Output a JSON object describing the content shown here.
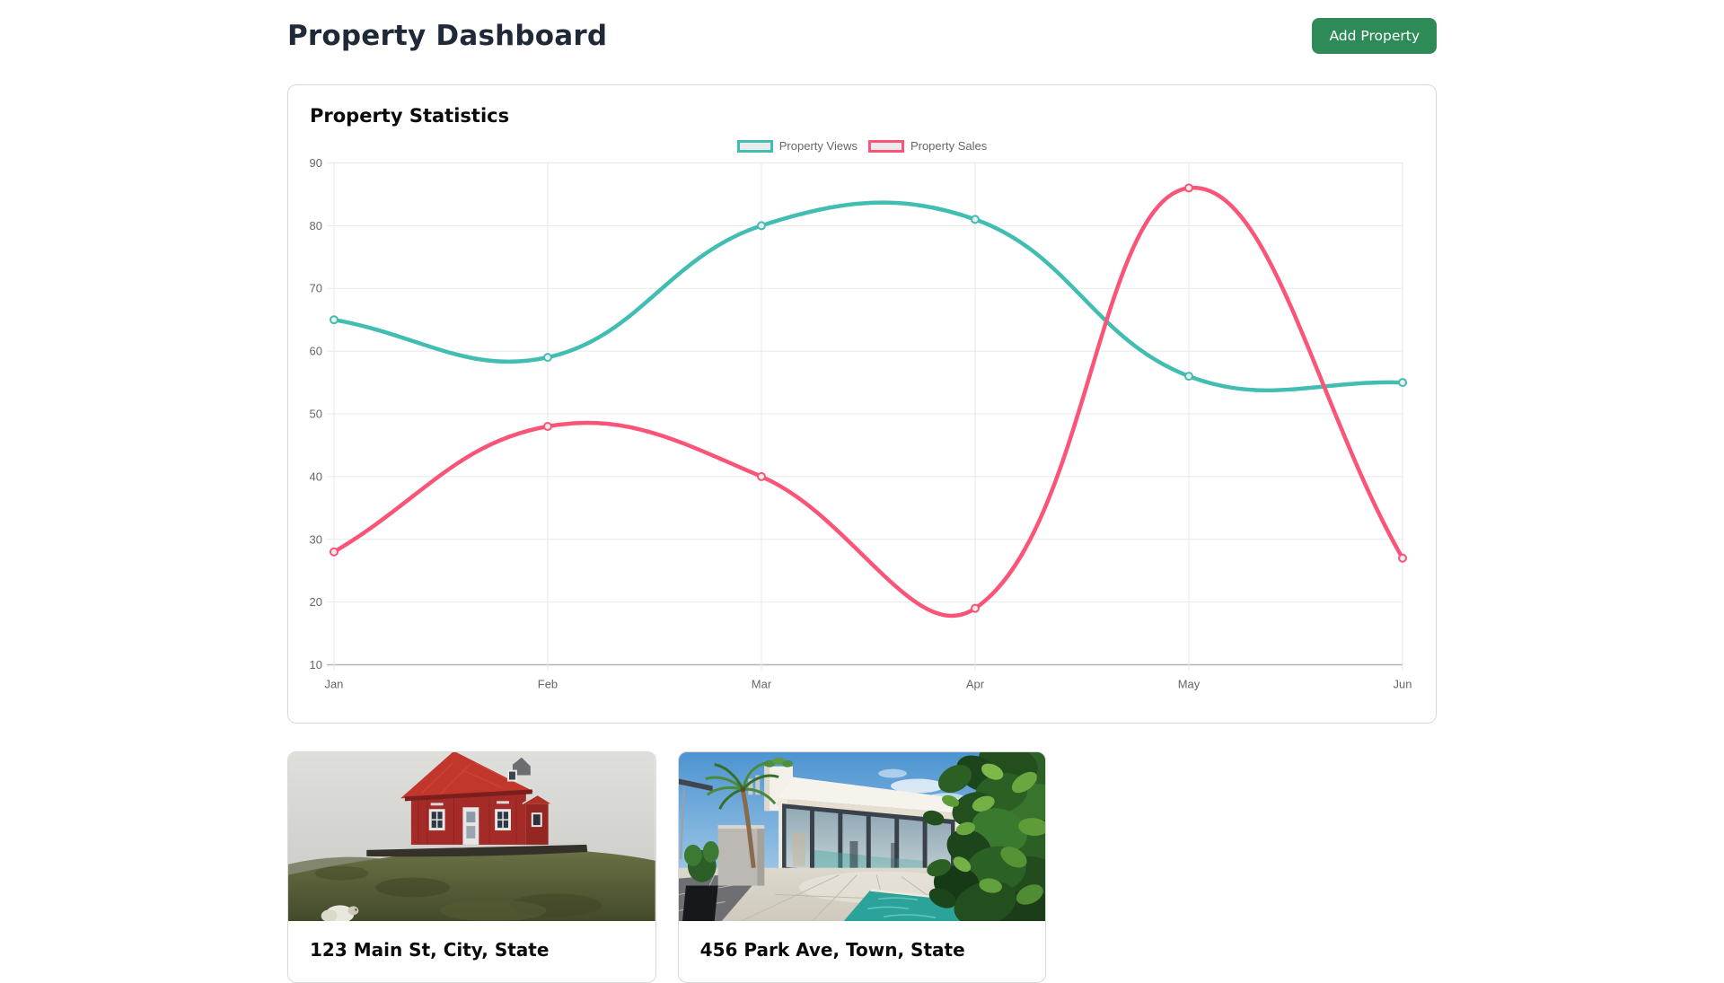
{
  "header": {
    "title": "Property Dashboard",
    "add_property_label": "Add Property"
  },
  "stats_card": {
    "title": "Property Statistics"
  },
  "chart_data": {
    "type": "line",
    "categories": [
      "Jan",
      "Feb",
      "Mar",
      "Apr",
      "May",
      "Jun"
    ],
    "series": [
      {
        "name": "Property Views",
        "color": "#41bdb2",
        "point_fill": "#ececec",
        "values": [
          65,
          59,
          80,
          81,
          56,
          55
        ]
      },
      {
        "name": "Property Sales",
        "color": "#fa5478",
        "point_fill": "#ececec",
        "values": [
          28,
          48,
          40,
          19,
          86,
          27
        ]
      }
    ],
    "ylim": [
      10,
      90
    ],
    "ytick_step": 10,
    "grid": true,
    "legend_position": "top",
    "line_tension": 0.4
  },
  "properties": [
    {
      "address": "123 Main St, City, State",
      "photo": "red-house-on-grassy-hill"
    },
    {
      "address": "456 Park Ave, Town, State",
      "photo": "modern-white-villa-with-pool"
    }
  ],
  "theme": {
    "accent_green": "#2e8b57",
    "heading_color": "#1f2937",
    "card_border": "#d9d9d9",
    "axis_text": "#666666",
    "grid_color": "#e8e8e8",
    "axis_line": "#b5b5b5",
    "legend_swatch_fill": "#ebebeb"
  }
}
